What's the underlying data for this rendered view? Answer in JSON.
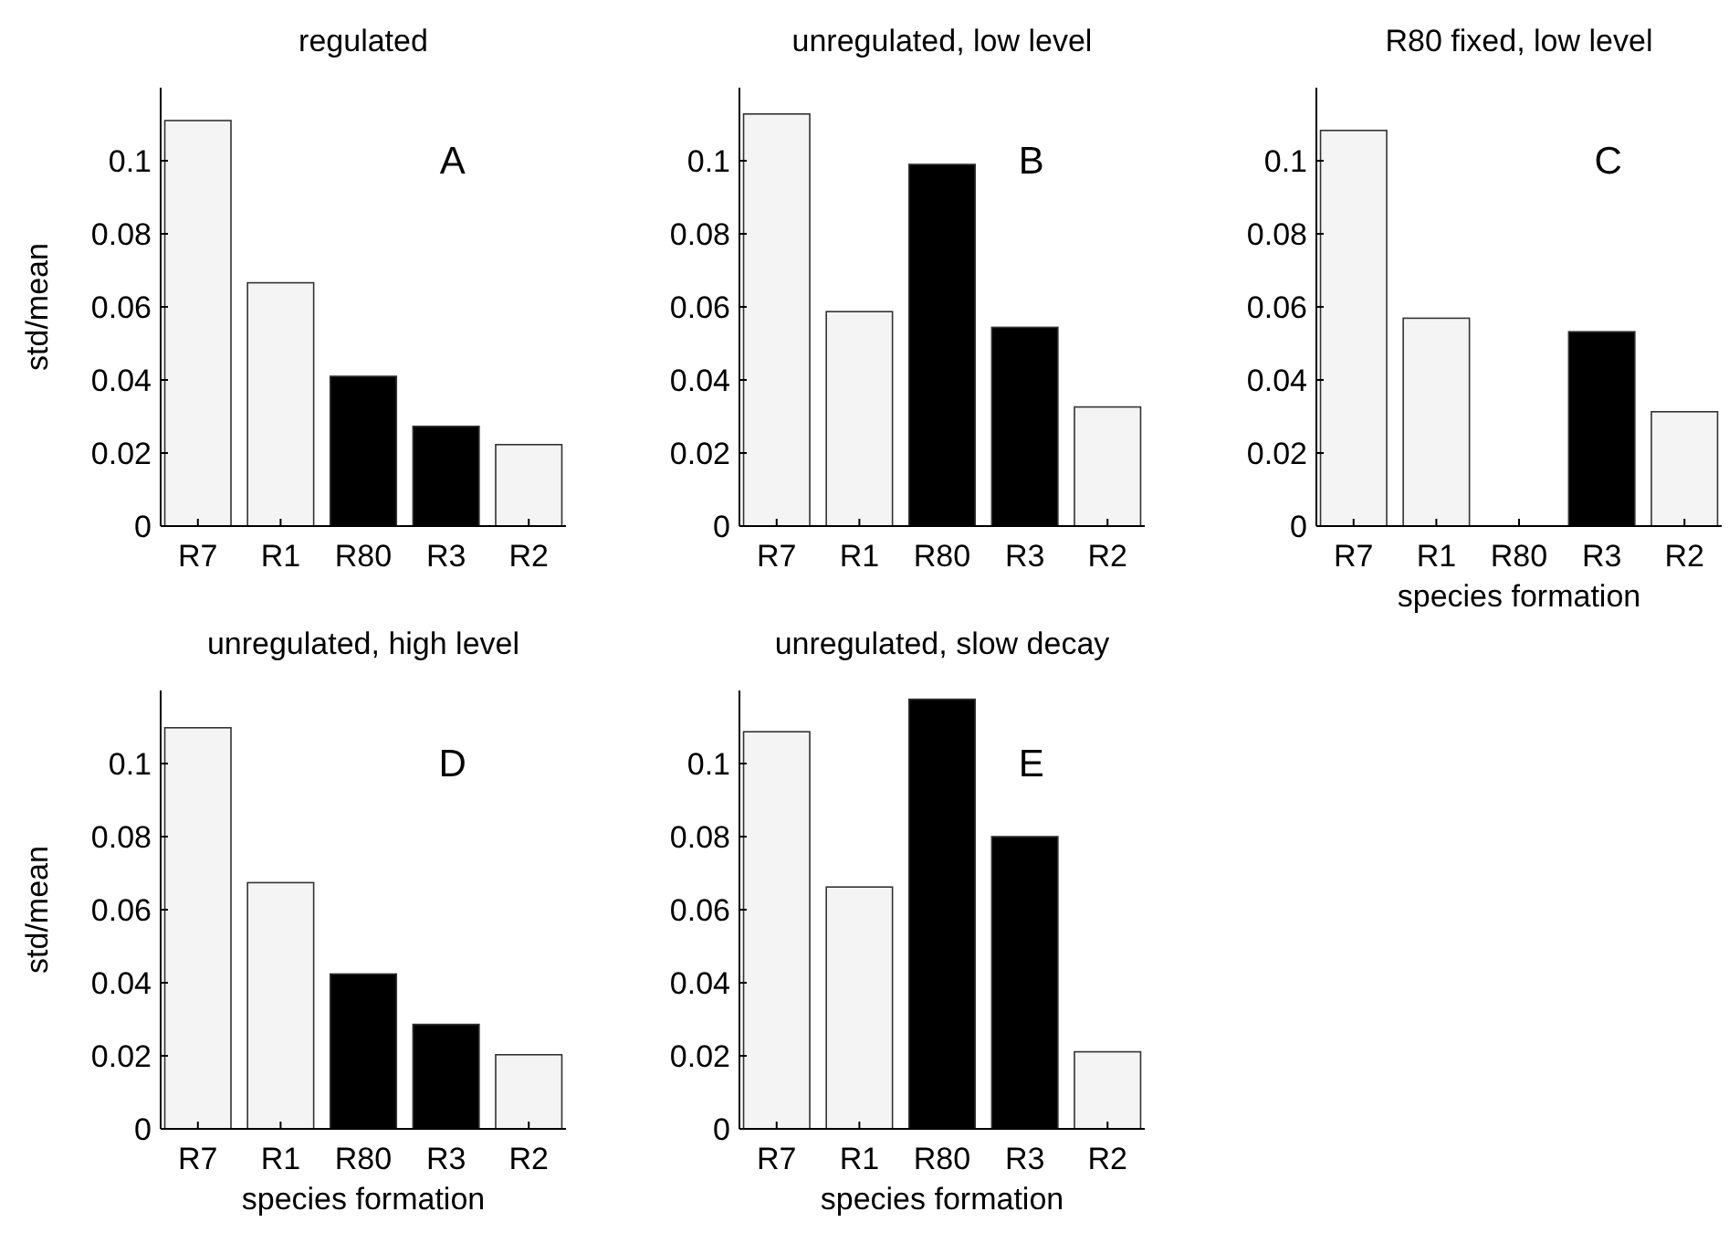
{
  "chart_data": [
    {
      "type": "bar",
      "title": "regulated",
      "ylabel": "std/mean",
      "annotations": [
        "A"
      ],
      "categories": [
        "R7",
        "R1",
        "R80",
        "R3",
        "R2"
      ],
      "values": [
        0.111,
        0.0666,
        0.041,
        0.0273,
        0.0223
      ],
      "colors": [
        "#f4f4f4",
        "#f4f4f4",
        "#000000",
        "#000000",
        "#f4f4f4"
      ],
      "ylim": [
        0,
        0.12
      ],
      "yticks": [
        0,
        0.02,
        0.04,
        0.06,
        0.08,
        0.1
      ],
      "grid": false
    },
    {
      "type": "bar",
      "title": "unregulated, low level",
      "annotations": [
        "B"
      ],
      "categories": [
        "R7",
        "R1",
        "R80",
        "R3",
        "R2"
      ],
      "values": [
        0.1128,
        0.0587,
        0.099,
        0.0544,
        0.0326
      ],
      "colors": [
        "#f4f4f4",
        "#f4f4f4",
        "#000000",
        "#000000",
        "#f4f4f4"
      ],
      "ylim": [
        0,
        0.12
      ],
      "yticks": [
        0,
        0.02,
        0.04,
        0.06,
        0.08,
        0.1
      ],
      "grid": false
    },
    {
      "type": "bar",
      "title": "R80 fixed, low level",
      "xlabel": "species formation",
      "annotations": [
        "C"
      ],
      "categories": [
        "R7",
        "R1",
        "R80",
        "R3",
        "R2"
      ],
      "values": [
        0.1083,
        0.0569,
        0,
        0.0532,
        0.0313
      ],
      "colors": [
        "#f4f4f4",
        "#f4f4f4",
        "#000000",
        "#000000",
        "#f4f4f4"
      ],
      "ylim": [
        0,
        0.12
      ],
      "yticks": [
        0,
        0.02,
        0.04,
        0.06,
        0.08,
        0.1
      ],
      "grid": false
    },
    {
      "type": "bar",
      "title": "unregulated, high level",
      "xlabel": "species formation",
      "ylabel": "std/mean",
      "annotations": [
        "D"
      ],
      "categories": [
        "R7",
        "R1",
        "R80",
        "R3",
        "R2"
      ],
      "values": [
        0.1098,
        0.0674,
        0.0424,
        0.0286,
        0.0203
      ],
      "colors": [
        "#f4f4f4",
        "#f4f4f4",
        "#000000",
        "#000000",
        "#f4f4f4"
      ],
      "ylim": [
        0,
        0.12
      ],
      "yticks": [
        0,
        0.02,
        0.04,
        0.06,
        0.08,
        0.1
      ],
      "grid": false
    },
    {
      "type": "bar",
      "title": "unregulated, slow decay",
      "xlabel": "species formation",
      "annotations": [
        "E"
      ],
      "categories": [
        "R7",
        "R1",
        "R80",
        "R3",
        "R2"
      ],
      "values": [
        0.1087,
        0.0662,
        0.1176,
        0.08,
        0.0211
      ],
      "colors": [
        "#f4f4f4",
        "#f4f4f4",
        "#000000",
        "#000000",
        "#f4f4f4"
      ],
      "ylim": [
        0,
        0.12
      ],
      "yticks": [
        0,
        0.02,
        0.04,
        0.06,
        0.08,
        0.1
      ],
      "grid": false
    }
  ]
}
